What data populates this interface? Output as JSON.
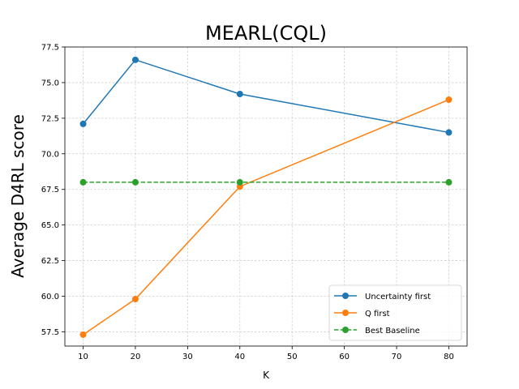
{
  "chart_data": {
    "type": "line",
    "title": "MEARL(CQL)",
    "xlabel": "K",
    "ylabel": "Average D4RL score",
    "x": [
      10,
      20,
      40,
      80
    ],
    "xlim": [
      6.5,
      83.5
    ],
    "ylim": [
      56.5,
      77.5
    ],
    "xticks": [
      10,
      20,
      30,
      40,
      50,
      60,
      70,
      80
    ],
    "xtick_labels": [
      "10",
      "20",
      "30",
      "40",
      "50",
      "60",
      "70",
      "80"
    ],
    "yticks": [
      57.5,
      60.0,
      62.5,
      65.0,
      67.5,
      70.0,
      72.5,
      75.0,
      77.5
    ],
    "ytick_labels": [
      "57.5",
      "60.0",
      "62.5",
      "65.0",
      "67.5",
      "70.0",
      "72.5",
      "75.0",
      "77.5"
    ],
    "grid": true,
    "legend_position": "lower-right",
    "series": [
      {
        "name": "Uncertainty first",
        "values": [
          72.1,
          76.6,
          74.2,
          71.5
        ],
        "color": "#1f77b4",
        "dashed": false
      },
      {
        "name": "Q first",
        "values": [
          57.3,
          59.8,
          67.7,
          73.8
        ],
        "color": "#ff7f0e",
        "dashed": false
      },
      {
        "name": "Best Baseline",
        "values": [
          68.0,
          68.0,
          68.0,
          68.0
        ],
        "color": "#2ca02c",
        "dashed": true
      }
    ]
  }
}
